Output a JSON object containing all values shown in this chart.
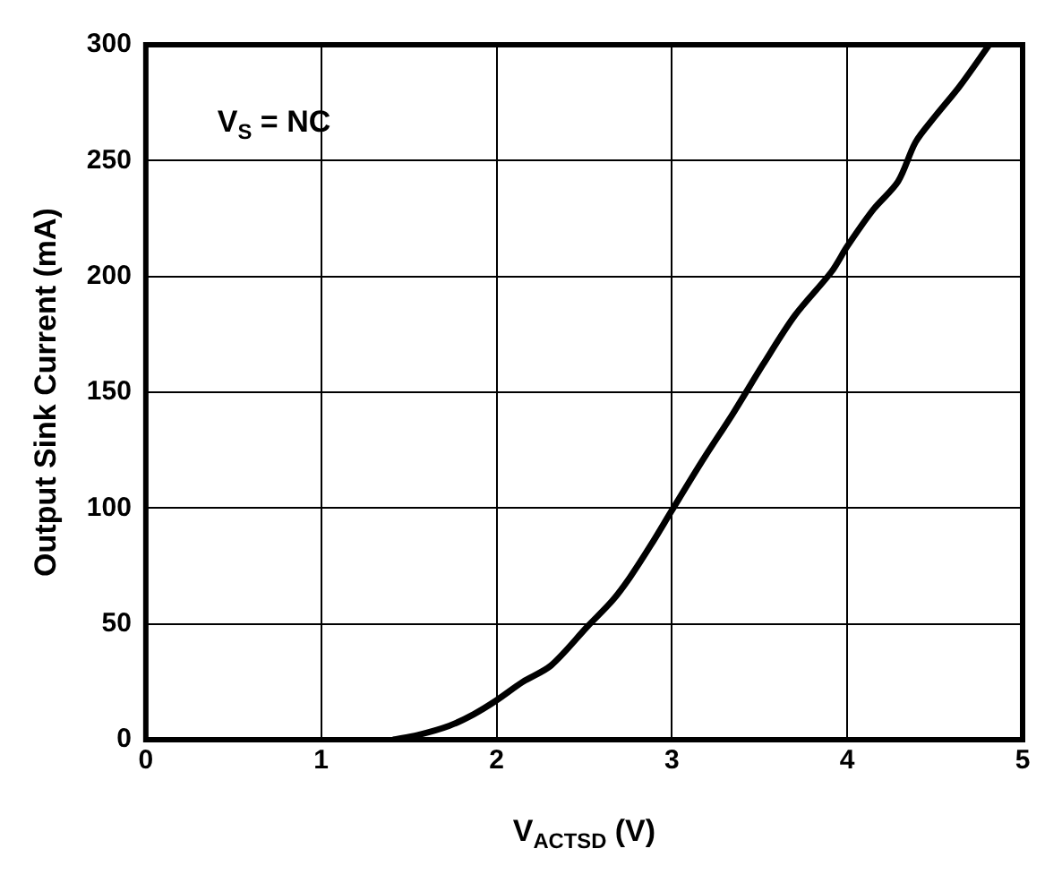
{
  "chart_data": {
    "type": "line",
    "xlabel": "V$_{ACTSD}$ (V)",
    "ylabel": "Output Sink Current (mA)",
    "annotations": [
      "V$_{S}$ = NC"
    ],
    "series": [
      {
        "color": "#000000",
        "x": [
          1.41,
          1.55,
          1.73,
          1.87,
          2.0,
          2.15,
          2.31,
          2.52,
          2.66,
          2.76,
          2.88,
          3.0,
          3.17,
          3.35,
          3.52,
          3.7,
          3.91,
          4.0,
          4.15,
          4.29,
          4.39,
          4.5,
          4.64,
          4.81
        ],
        "values": [
          0,
          2,
          6,
          11,
          17,
          25,
          32,
          49,
          60,
          70,
          84,
          99,
          120,
          141,
          162,
          183,
          202,
          213,
          229,
          241,
          258,
          269,
          282,
          300
        ]
      }
    ],
    "xlim": [
      0,
      5
    ],
    "xticks": [
      0,
      1,
      2,
      3,
      4,
      5
    ],
    "ylim": [
      0,
      300
    ],
    "yticks": [
      0,
      50,
      100,
      150,
      200,
      250,
      300
    ],
    "grid": true,
    "legend": false,
    "marker": "none",
    "line_style": "solid"
  }
}
